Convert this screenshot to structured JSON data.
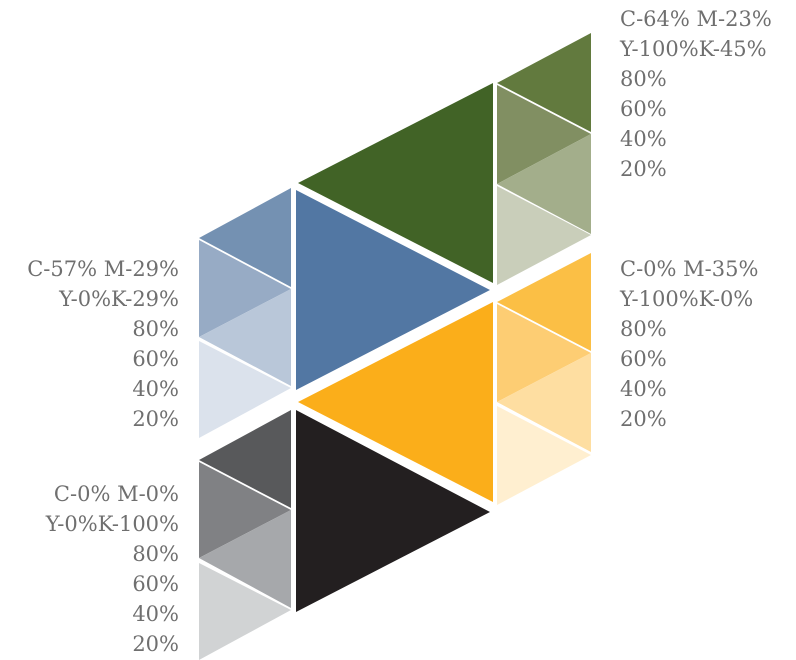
{
  "swatches": [
    {
      "id": "green",
      "cmyk_line1": "C-64% M-23%",
      "cmyk_line2": "Y-100%K-45%",
      "tints": [
        "80%",
        "60%",
        "40%",
        "20%"
      ],
      "base_color": "#416326",
      "tint_colors": [
        "#627a3e",
        "#818f62",
        "#a3ae8b",
        "#c9ceba"
      ]
    },
    {
      "id": "blue",
      "cmyk_line1": "C-57% M-29%",
      "cmyk_line2": "Y-0%K-29%",
      "tints": [
        "80%",
        "60%",
        "40%",
        "20%"
      ],
      "base_color": "#5277a3",
      "tint_colors": [
        "#7491b2",
        "#97abc5",
        "#b9c7d9",
        "#dbe2ec"
      ]
    },
    {
      "id": "yellow",
      "cmyk_line1": "C-0% M-35%",
      "cmyk_line2": "Y-100%K-0%",
      "tints": [
        "80%",
        "60%",
        "40%",
        "20%"
      ],
      "base_color": "#fbae1a",
      "tint_colors": [
        "#fbbf45",
        "#fdcd73",
        "#fedea1",
        "#ffefd0"
      ]
    },
    {
      "id": "black",
      "cmyk_line1": "C-0% M-0%",
      "cmyk_line2": "Y-0%K-100%",
      "tints": [
        "80%",
        "60%",
        "40%",
        "20%"
      ],
      "base_color": "#231f20",
      "tint_colors": [
        "#58595b",
        "#808184",
        "#a6a8ab",
        "#d1d3d4"
      ]
    }
  ]
}
